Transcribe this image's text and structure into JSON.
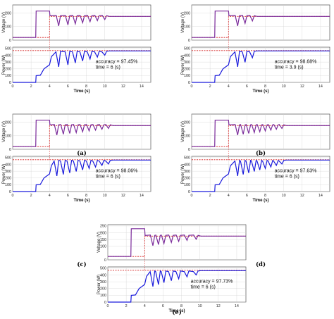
{
  "chart_data": [
    {
      "panel": "a",
      "caption": "(a)",
      "type": "line",
      "accuracy_text": "accuracy = 97.45%",
      "time_text": "time = 6 (s)",
      "settle": 4,
      "osc": [
        5,
        6,
        6.8,
        7.6,
        8.4,
        9.2,
        10
      ],
      "top": {
        "ylabel": "Voltage (V)",
        "yticks": [
          0,
          100,
          200
        ],
        "ylim": [
          0,
          260
        ],
        "high": 215,
        "target": 175,
        "low": 20
      },
      "bottom": {
        "ylabel": "Power (W)",
        "yticks": [
          0,
          100,
          200,
          300,
          400,
          500
        ],
        "ylim": [
          0,
          520
        ],
        "target": 470
      },
      "xlabel": "Time (s)",
      "xticks": [
        0,
        2,
        4,
        6,
        8,
        10,
        12,
        14
      ]
    },
    {
      "panel": "b",
      "caption": "(b)",
      "type": "line",
      "accuracy_text": "accuracy = 98.68%",
      "time_text": "time = 3.9 (s)",
      "settle": 4,
      "osc": [
        5,
        5.8,
        6.6
      ],
      "top": {
        "ylabel": "Voltage (V)",
        "yticks": [
          0,
          100,
          200
        ],
        "ylim": [
          0,
          260
        ],
        "high": 215,
        "target": 175,
        "low": 20
      },
      "bottom": {
        "ylabel": "Power (W)",
        "yticks": [
          0,
          100,
          200,
          300,
          400,
          500
        ],
        "ylim": [
          0,
          520
        ],
        "target": 470
      },
      "xlabel": "Time (s)",
      "xticks": [
        0,
        2,
        4,
        6,
        8,
        10,
        12,
        14
      ]
    },
    {
      "panel": "c",
      "caption": "(c)",
      "type": "line",
      "accuracy_text": "accuracy = 98.06%",
      "time_text": "time = 6 (s)",
      "settle": 4,
      "osc": [
        4.8,
        5.5,
        6.2,
        6.9,
        7.6,
        8.3,
        9,
        9.7,
        10.4
      ],
      "top": {
        "ylabel": "Voltage (V)",
        "yticks": [
          0,
          100,
          200
        ],
        "ylim": [
          0,
          260
        ],
        "high": 215,
        "target": 175,
        "low": 20
      },
      "bottom": {
        "ylabel": "Power (W)",
        "yticks": [
          0,
          100,
          200,
          300,
          400,
          500
        ],
        "ylim": [
          0,
          520
        ],
        "target": 470
      },
      "xlabel": "Time (s)",
      "xticks": [
        0,
        2,
        4,
        6,
        8,
        10,
        12,
        14
      ]
    },
    {
      "panel": "d",
      "caption": "(d)",
      "type": "line",
      "accuracy_text": "accuracy = 97.63%",
      "time_text": "time = 6 (s)",
      "settle": 4,
      "osc": [
        5,
        5.6,
        6.2,
        6.8,
        7.4,
        8,
        8.6,
        9.2,
        9.8
      ],
      "top": {
        "ylabel": "Voltage (V)",
        "yticks": [
          0,
          100,
          200
        ],
        "ylim": [
          0,
          260
        ],
        "high": 215,
        "target": 175,
        "low": 20
      },
      "bottom": {
        "ylabel": "Power (W)",
        "yticks": [
          0,
          100,
          200,
          300,
          400,
          500
        ],
        "ylim": [
          0,
          520
        ],
        "target": 470
      },
      "xlabel": "Time (s)",
      "xticks": [
        0,
        2,
        4,
        6,
        8,
        10,
        12,
        14
      ]
    },
    {
      "panel": "e",
      "caption": "(e)",
      "type": "line",
      "accuracy_text": "accuracy = 97.73%",
      "time_text": "time = 6 (s)",
      "settle": 4,
      "osc": [
        4.9,
        5.5,
        6.1,
        6.9,
        7.7,
        8.6,
        9.6
      ],
      "top": {
        "ylabel": "Voltage (V)",
        "yticks": [
          0,
          100,
          150,
          200,
          250
        ],
        "ylim": [
          0,
          260
        ],
        "high": 230,
        "target": 175,
        "low": 25
      },
      "bottom": {
        "ylabel": "Power (W)",
        "yticks": [
          0,
          100,
          200,
          300,
          400,
          500
        ],
        "ylim": [
          0,
          520
        ],
        "target": 470
      },
      "xlabel": "Time (s)",
      "xticks": [
        0,
        2,
        4,
        6,
        8,
        10,
        12,
        14
      ]
    }
  ],
  "colors": {
    "simulated": "#1a1adc",
    "target": "#d42020",
    "voltage_mix": "#7a2a9a",
    "grid": "#d0d0d0"
  }
}
